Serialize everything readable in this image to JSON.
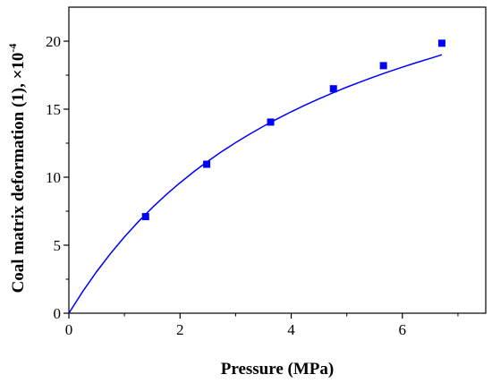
{
  "chart_data": {
    "type": "scatter",
    "title": "",
    "xlabel": "Pressure (MPa)",
    "ylabel": "Coal matrix deformation (1), ×10",
    "ylabel_exponent": "-4",
    "xlim": [
      0,
      7.5
    ],
    "ylim": [
      0,
      22.5
    ],
    "xticks": [
      0,
      2,
      4,
      6
    ],
    "yticks": [
      0,
      5,
      10,
      15,
      20
    ],
    "grid": false,
    "legend": "none",
    "series": [
      {
        "x": [
          1.38,
          2.48,
          3.63,
          4.76,
          5.66,
          6.71
        ],
        "y": [
          7.1,
          10.95,
          14.05,
          16.5,
          18.2,
          19.85
        ],
        "marker": "square",
        "color": "#0000ff"
      }
    ],
    "fit_curve": {
      "x": [
        0,
        0.25,
        0.5,
        0.75,
        1,
        1.25,
        1.5,
        1.75,
        2,
        2.25,
        2.5,
        2.75,
        3,
        3.25,
        3.5,
        3.75,
        4,
        4.25,
        4.5,
        4.75,
        5,
        5.25,
        5.5,
        5.75,
        6,
        6.25,
        6.5,
        6.71
      ],
      "y": [
        0,
        1.6,
        3.06,
        4.39,
        5.61,
        6.73,
        7.76,
        8.71,
        9.59,
        10.41,
        11.17,
        11.88,
        12.54,
        13.16,
        13.74,
        14.29,
        14.81,
        15.3,
        15.76,
        16.2,
        16.62,
        17.01,
        17.39,
        17.75,
        18.09,
        18.42,
        18.73,
        19.0
      ],
      "color": "#0000ff"
    }
  }
}
